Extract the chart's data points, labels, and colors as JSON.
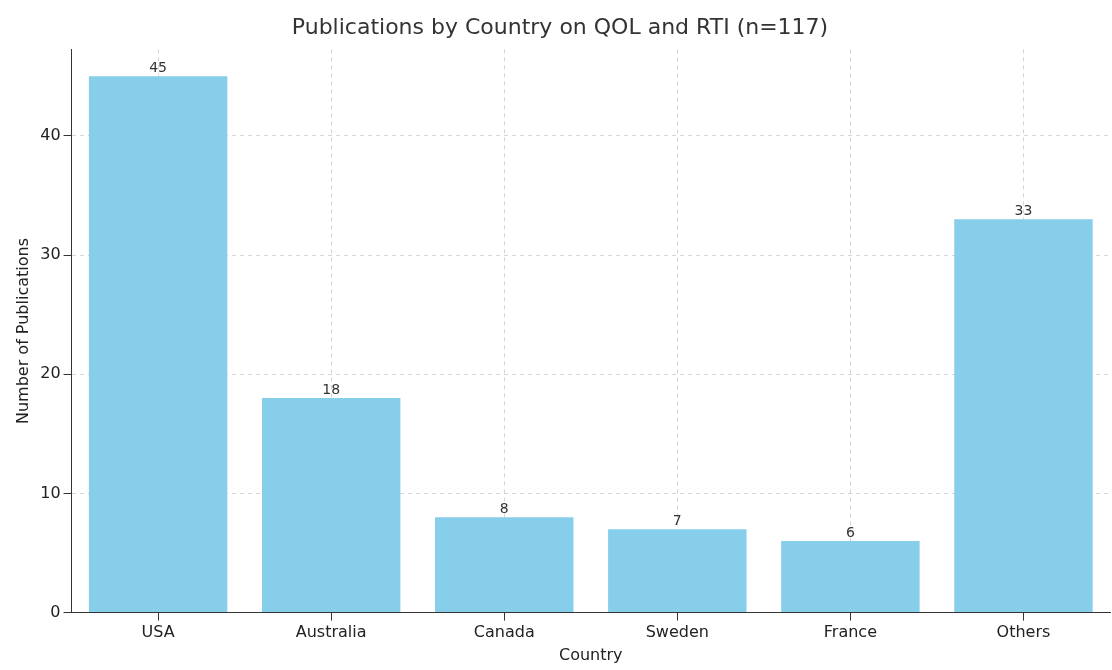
{
  "chart_data": {
    "type": "bar",
    "title": "Publications by Country on QOL and RTI (n=117)",
    "xlabel": "Country",
    "ylabel": "Number of Publications",
    "categories": [
      "USA",
      "Australia",
      "Canada",
      "Sweden",
      "France",
      "Others"
    ],
    "values": [
      45,
      18,
      8,
      7,
      6,
      33
    ],
    "color": "#87ceeb",
    "ylim": [
      0,
      47.25
    ],
    "yticks": [
      0,
      10,
      20,
      30,
      40
    ],
    "grid": true,
    "data_labels": true
  }
}
